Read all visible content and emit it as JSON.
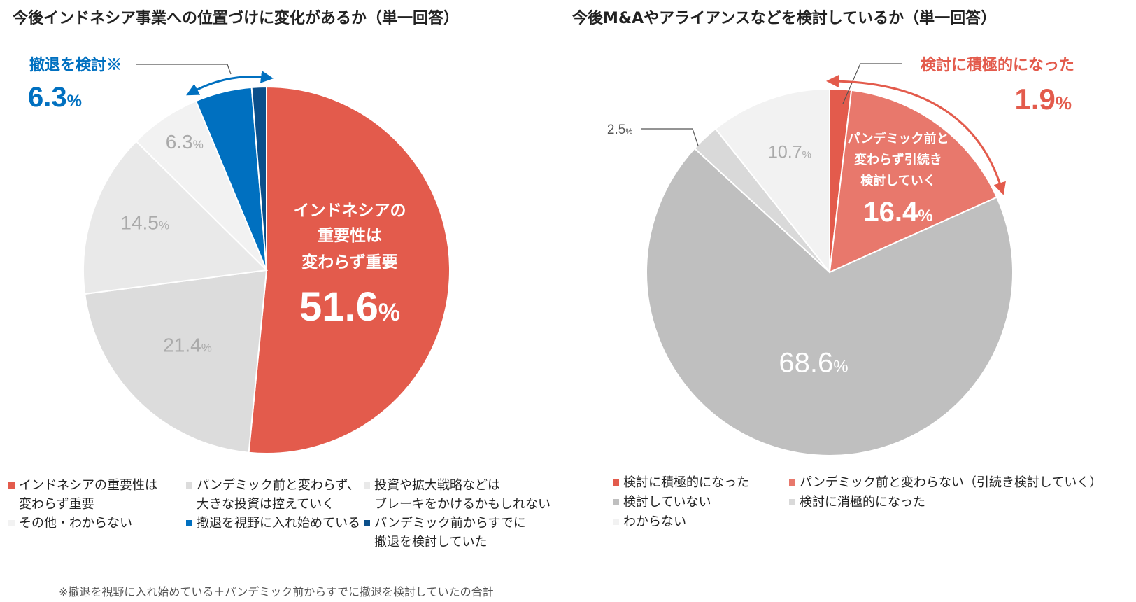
{
  "left_chart": {
    "title": "今後インドネシア事業への位置づけに変化があるか（単一回答）",
    "callout": {
      "label": "撤退を検討※",
      "value": "6.3",
      "unit": "%",
      "color": "#0070C0"
    },
    "inner_label": [
      "インドネシアの",
      "重要性は",
      "変わらず重要"
    ],
    "footnote": "※撤退を視野に入れ始めている＋パンデミック前からすでに撤退を検討していたの合計",
    "legend": [
      {
        "lines": [
          "インドネシアの重要性は",
          "変わらず重要"
        ],
        "color": "#E35B4C"
      },
      {
        "lines": [
          "パンデミック前と変わらず、",
          "大きな投資は控えていく"
        ],
        "color": "#DCDCDC"
      },
      {
        "lines": [
          "投資や拡大戦略などは",
          "ブレーキをかけるかもしれない"
        ],
        "color": "#E9E9E9"
      },
      {
        "lines": [
          "その他・わからない"
        ],
        "color": "#F2F2F2"
      },
      {
        "lines": [
          "撤退を視野に入れ始めている"
        ],
        "color": "#0070C0"
      },
      {
        "lines": [
          "パンデミック前からすでに",
          "撤退を検討していた"
        ],
        "color": "#0B4F8A"
      }
    ]
  },
  "right_chart": {
    "title": "今後M&Aやアライアンスなどを検討しているか（単一回答）",
    "callout": {
      "label": "検討に積極的になった",
      "value": "1.9",
      "unit": "%",
      "color": "#E35B4C"
    },
    "inner_label": [
      "パンデミック前と",
      "変わらず引続き",
      "検討していく"
    ],
    "legend": [
      {
        "lines": [
          "検討に積極的になった"
        ],
        "color": "#E35B4C"
      },
      {
        "lines": [
          "パンデミック前と変わらない（引続き検討していく）"
        ],
        "color": "#E8786C"
      },
      {
        "lines": [
          "検討していない"
        ],
        "color": "#BFBFBF"
      },
      {
        "lines": [
          "検討に消極的になった"
        ],
        "color": "#D9D9D9"
      },
      {
        "lines": [
          "わからない"
        ],
        "color": "#F2F2F2"
      }
    ]
  },
  "chart_data": [
    {
      "type": "pie",
      "title": "今後インドネシア事業への位置づけに変化があるか（単一回答）",
      "series": [
        {
          "slices": [
            {
              "name": "インドネシアの重要性は変わらず重要",
              "value": 51.6,
              "label": "51.6",
              "color": "#E35B4C"
            },
            {
              "name": "パンデミック前と変わらず、大きな投資は控えていく",
              "value": 21.4,
              "label": "21.4",
              "color": "#DCDCDC"
            },
            {
              "name": "投資や拡大戦略などはブレーキをかけるかもしれない",
              "value": 14.5,
              "label": "14.5",
              "color": "#E9E9E9"
            },
            {
              "name": "その他・わからない",
              "value": 6.3,
              "label": "6.3",
              "color": "#F2F2F2"
            },
            {
              "name": "撤退を視野に入れ始めている",
              "value": 5.0,
              "label": "",
              "color": "#0070C0"
            },
            {
              "name": "パンデミック前からすでに撤退を検討していた",
              "value": 1.3,
              "label": "",
              "color": "#0B4F8A"
            }
          ]
        }
      ]
    },
    {
      "type": "pie",
      "title": "今後M&Aやアライアンスなどを検討しているか（単一回答）",
      "series": [
        {
          "slices": [
            {
              "name": "検討に積極的になった",
              "value": 1.9,
              "label": "",
              "color": "#E35B4C"
            },
            {
              "name": "パンデミック前と変わらない（引続き検討していく）",
              "value": 16.4,
              "label": "16.4",
              "color": "#E8786C"
            },
            {
              "name": "検討していない",
              "value": 68.6,
              "label": "68.6",
              "color": "#BFBFBF"
            },
            {
              "name": "検討に消極的になった",
              "value": 2.5,
              "label": "2.5",
              "color": "#D9D9D9"
            },
            {
              "name": "わからない",
              "value": 10.7,
              "label": "10.7",
              "color": "#F2F2F2"
            }
          ]
        }
      ]
    }
  ]
}
